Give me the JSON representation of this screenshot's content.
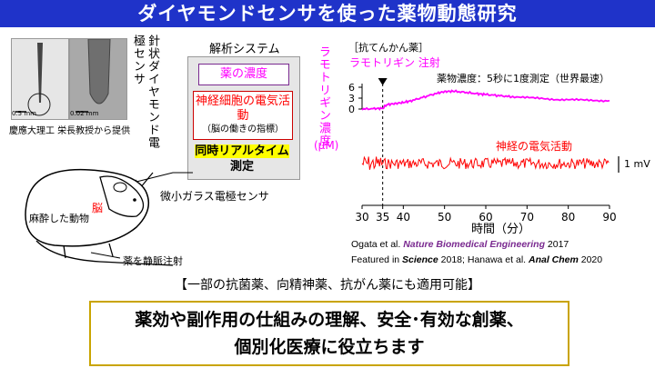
{
  "title": "ダイヤモンドセンサを使った薬物動態研究",
  "photo_credit": "慶應大理工 栄長教授から提供",
  "scale_left": "0.5 mm",
  "scale_right": "0.02 mm",
  "sensor_label": "針状ダイヤモンド電極センサ",
  "analysis": {
    "title": "解析システム",
    "drug_conc": "薬の濃度",
    "neural_title": "神経細胞の電気活動",
    "neural_sub": "（脳の働きの指標）",
    "realtime": "同時リアルタイム",
    "measure": "測定"
  },
  "animal": {
    "body": "麻酔した動物",
    "brain": "脳",
    "glass": "微小ガラス電極センサ",
    "injection": "薬を静脈注射"
  },
  "plot": {
    "antiepileptic": "［抗てんかん薬］",
    "drug_name_inj": "ラモトリギン 注射",
    "ylabel": "ラモトリギン濃度",
    "yunit": "(μM)",
    "drug_conc_label": "薬物濃度：5秒に1度測定（世界最速）",
    "neural_label": "神経の電気活動",
    "scale_bar": "1 mV",
    "xlabel": "時間（分）"
  },
  "chart_data": {
    "type": "line",
    "xlim": [
      30,
      90
    ],
    "x_ticks": [
      "30",
      "35",
      "40",
      "50",
      "60",
      "70",
      "80",
      "90"
    ],
    "y_ticks": [
      "6",
      "3",
      "0"
    ],
    "ylim": [
      0,
      6
    ],
    "injection_time": 35,
    "series": [
      {
        "color": "#ff00ff",
        "x": [
          30,
          33,
          35,
          36,
          38,
          40,
          42,
          45,
          48,
          50,
          52,
          55,
          58,
          60,
          63,
          66,
          70,
          74,
          78,
          82,
          86,
          90
        ],
        "y": [
          0.0,
          0.1,
          0.2,
          1.2,
          1.5,
          1.8,
          2.3,
          3.3,
          4.3,
          4.8,
          4.9,
          4.6,
          4.2,
          4.0,
          3.7,
          3.4,
          3.1,
          2.9,
          2.6,
          2.5,
          2.4,
          2.3
        ]
      }
    ]
  },
  "refs": {
    "line1_pre": "Ogata et al. ",
    "line1_journal": "Nature Biomedical Engineering",
    "line1_post": " 2017",
    "line2_pre": "Featured in ",
    "line2_journal": "Science",
    "line2_mid": " 2018; Hanawa et al. ",
    "line2_journal2": "Anal Chem",
    "line2_post": " 2020"
  },
  "applicable": "【一部の抗菌薬、向精神薬、抗がん薬にも適用可能】",
  "bottom": {
    "line1": "薬効や副作用の仕組みの理解、安全･有効な創薬、",
    "line2": "個別化医療に役立ちます"
  },
  "colors": {
    "title_bg": "#1f33c9",
    "magenta": "#ff00ff",
    "red": "#ff0000",
    "highlight": "#ffff00"
  }
}
